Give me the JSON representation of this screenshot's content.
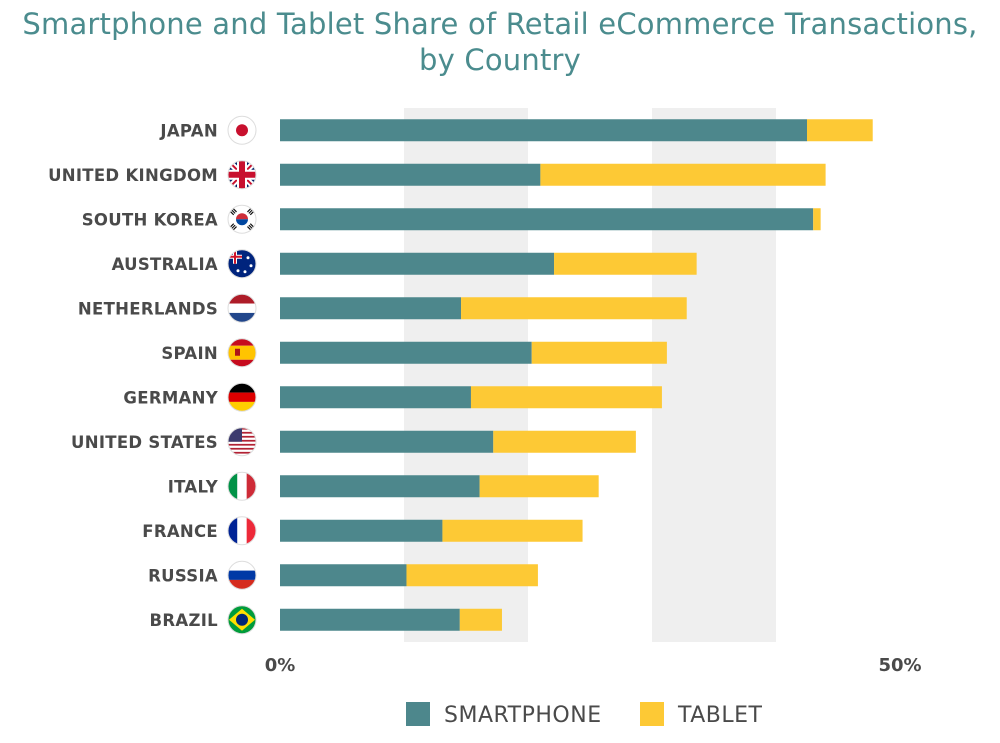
{
  "chart_data": {
    "type": "bar",
    "orientation": "horizontal",
    "stacked": true,
    "title": "Smartphone and Tablet Share of Retail eCommerce Transactions, by Country",
    "title_lines": [
      "Smartphone and Tablet Share of Retail eCommerce Transactions,",
      "by Country"
    ],
    "categories": [
      "JAPAN",
      "UNITED KINGDOM",
      "SOUTH KOREA",
      "AUSTRALIA",
      "NETHERLANDS",
      "SPAIN",
      "GERMANY",
      "UNITED STATES",
      "ITALY",
      "FRANCE",
      "RUSSIA",
      "BRAZIL"
    ],
    "flags": [
      "japan-flag",
      "uk-flag",
      "south-korea-flag",
      "australia-flag",
      "netherlands-flag",
      "spain-flag",
      "germany-flag",
      "us-flag",
      "italy-flag",
      "france-flag",
      "russia-flag",
      "brazil-flag"
    ],
    "series": [
      {
        "name": "SMARTPHONE",
        "color": "#4d878c",
        "values": [
          42.5,
          21.0,
          43.0,
          22.1,
          14.6,
          20.3,
          15.4,
          17.2,
          16.1,
          13.1,
          10.2,
          14.5
        ]
      },
      {
        "name": "TABLET",
        "color": "#fdc935",
        "values": [
          5.3,
          23.0,
          0.6,
          11.5,
          18.2,
          10.9,
          15.4,
          11.5,
          9.6,
          11.3,
          10.6,
          3.4
        ]
      }
    ],
    "xlim": [
      0,
      50
    ],
    "x_tick_labels": [
      "0%",
      "50%"
    ],
    "grid_bands": true,
    "legend": "bottom"
  }
}
